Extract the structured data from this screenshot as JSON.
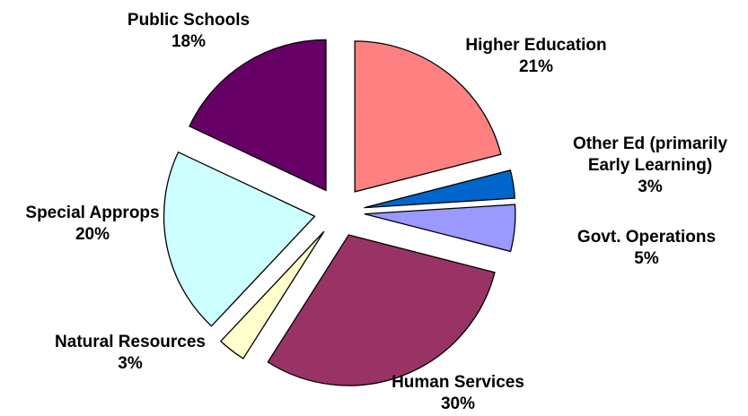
{
  "chart_data": {
    "type": "pie",
    "exploded": true,
    "slices": [
      {
        "label": "Higher Education",
        "value": 21,
        "value_label": "21%",
        "color": "#ff8080"
      },
      {
        "label": "Other Ed (primarily Early Learning)",
        "value": 3,
        "value_label": "3%",
        "color": "#0066cc"
      },
      {
        "label": "Govt. Operations",
        "value": 5,
        "value_label": "5%",
        "color": "#9999ff"
      },
      {
        "label": "Human Services",
        "value": 30,
        "value_label": "30%",
        "color": "#993366"
      },
      {
        "label": "Natural Resources",
        "value": 3,
        "value_label": "3%",
        "color": "#ffffcc"
      },
      {
        "label": "Special Approps",
        "value": 20,
        "value_label": "20%",
        "color": "#ccffff"
      },
      {
        "label": "Public Schools",
        "value": 18,
        "value_label": "18%",
        "color": "#660066"
      }
    ],
    "label_lines": [
      [
        "Higher Education",
        "21%"
      ],
      [
        "Other Ed (primarily",
        "Early Learning)",
        "3%"
      ],
      [
        "Govt. Operations",
        "5%"
      ],
      [
        "Human Services",
        "30%"
      ],
      [
        "Natural Resources",
        "3%"
      ],
      [
        "Special Approps",
        "20%"
      ],
      [
        "Public Schools",
        "18%"
      ]
    ]
  }
}
